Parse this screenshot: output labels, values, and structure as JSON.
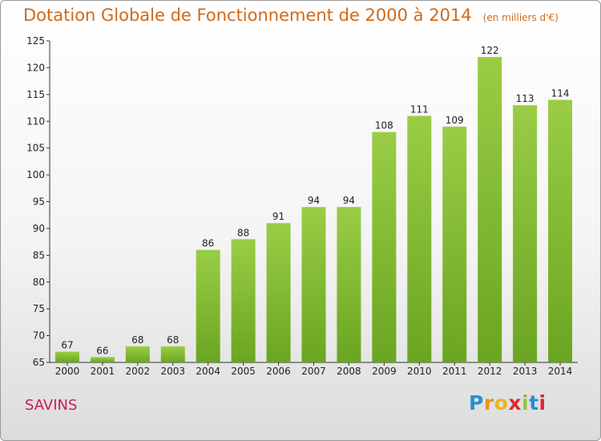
{
  "title": "Dotation Globale de Fonctionnement de 2000 à 2014",
  "unit_note": "(en milliers d'€)",
  "place": "SAVINS",
  "logo_letters": [
    "P",
    "r",
    "o",
    "x",
    "i",
    "t",
    "i"
  ],
  "colors": {
    "bar_light": "#9acd45",
    "bar_dark": "#6aa521",
    "title": "#d06a1a",
    "place": "#c4205a"
  },
  "chart_data": {
    "type": "bar",
    "title": "Dotation Globale de Fonctionnement de 2000 à 2014",
    "subtitle": "(en milliers d'€)",
    "xlabel": "",
    "ylabel": "",
    "categories": [
      "2000",
      "2001",
      "2002",
      "2003",
      "2004",
      "2005",
      "2006",
      "2007",
      "2008",
      "2009",
      "2010",
      "2011",
      "2012",
      "2013",
      "2014"
    ],
    "values": [
      67,
      66,
      68,
      68,
      86,
      88,
      91,
      94,
      94,
      108,
      111,
      109,
      122,
      113,
      114
    ],
    "ylim": [
      65,
      125
    ],
    "yticks": [
      65,
      70,
      75,
      80,
      85,
      90,
      95,
      100,
      105,
      110,
      115,
      120,
      125
    ],
    "grid": false
  }
}
